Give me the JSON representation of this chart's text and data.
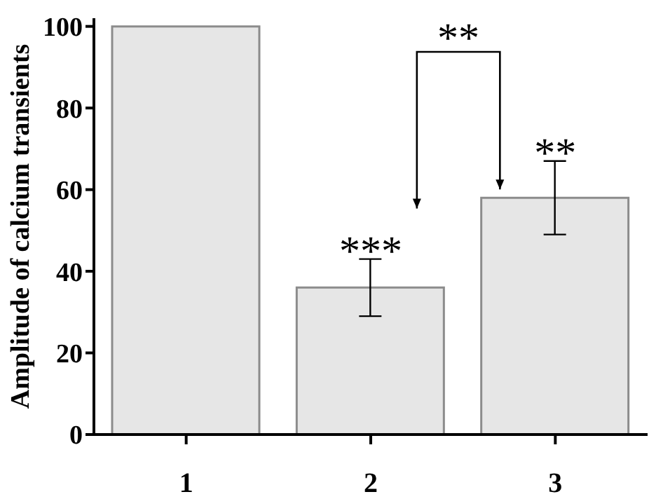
{
  "chart_data": {
    "type": "bar",
    "ylabel": "Amplitude of calcium transients",
    "categories": [
      "1",
      "2",
      "3"
    ],
    "values": [
      100,
      36,
      58
    ],
    "errors": [
      null,
      7,
      9
    ],
    "color": "#e6e6e6",
    "ylim": [
      0,
      102
    ],
    "yticks": [
      0,
      20,
      40,
      60,
      80,
      100
    ],
    "grid": false,
    "annotations": [
      {
        "text": "***",
        "x": "2",
        "y": 43
      },
      {
        "text": "**",
        "x": "3",
        "y": 67
      },
      "**"
    ]
  }
}
